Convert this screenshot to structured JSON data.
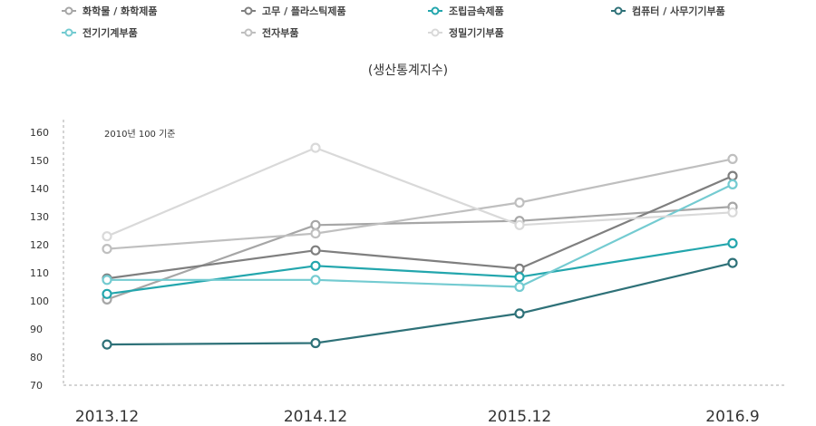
{
  "chart_data": {
    "type": "line",
    "subtitle": "(생산통계지수)",
    "note": "2010년 100 기준",
    "categories": [
      "2013.12",
      "2014.12",
      "2015.12",
      "2016.9"
    ],
    "ylim": [
      70,
      160
    ],
    "yticks": [
      70,
      80,
      90,
      100,
      110,
      120,
      130,
      140,
      150,
      160
    ],
    "grid": false,
    "legend_position": "top",
    "series": [
      {
        "name": "화학물 / 화학제품",
        "color": "#a6a6a6",
        "values": [
          100.5,
          127,
          128.5,
          133.5
        ]
      },
      {
        "name": "고무 / 플라스틱제품",
        "color": "#7f7f7f",
        "values": [
          108,
          118,
          111.5,
          144.5
        ]
      },
      {
        "name": "조립금속제품",
        "color": "#23a6ad",
        "values": [
          102.5,
          112.5,
          108.5,
          120.5
        ]
      },
      {
        "name": "컴퓨터 / 사무기기부품",
        "color": "#2e7178",
        "values": [
          84.5,
          85,
          95.5,
          113.5
        ]
      },
      {
        "name": "전기기계부품",
        "color": "#74cbd1",
        "values": [
          107.5,
          107.5,
          105,
          141.5
        ]
      },
      {
        "name": "전자부품",
        "color": "#bfbfbf",
        "values": [
          118.5,
          124,
          135,
          150.5
        ]
      },
      {
        "name": "정밀기기부품",
        "color": "#d9d9d9",
        "values": [
          123,
          154.5,
          127,
          131.5
        ]
      }
    ]
  }
}
